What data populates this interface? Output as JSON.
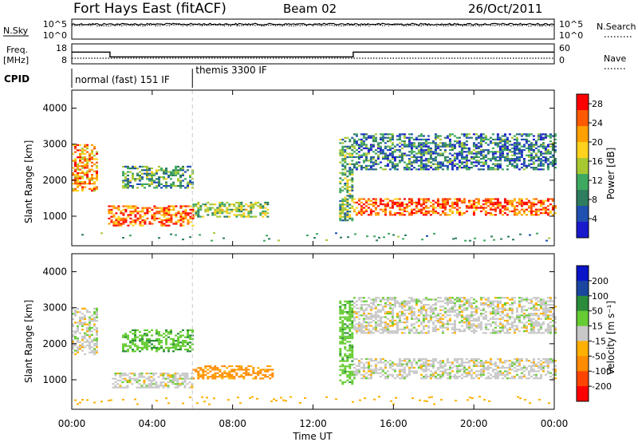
{
  "header": {
    "station": "Fort Hays East (fitACF)",
    "beam": "Beam 02",
    "date": "26/Oct/2011"
  },
  "panel_labels": {
    "nsky": "N.Sky",
    "nsearch": "N.Search",
    "freq_line1": "Freq.",
    "freq_line2": "[MHz]",
    "nave": "Nave",
    "cpid": "CPID"
  },
  "cpid_segments": [
    {
      "label": "normal (fast) 151 IF",
      "start_hour": 0,
      "end_hour": 6
    },
    {
      "label": "themis 3300 IF",
      "start_hour": 6,
      "end_hour": 24
    }
  ],
  "colors": {
    "power": [
      "#1a1acc",
      "#2050b0",
      "#2e7d5e",
      "#3fa860",
      "#a8c832",
      "#ffd21e",
      "#ffa000",
      "#ff5a00",
      "#ff0000"
    ],
    "velocity": [
      "#ff0000",
      "#ff4400",
      "#ff8c00",
      "#ffb000",
      "#c8c8c8",
      "#66cc33",
      "#2a8c3a",
      "#1a46a0",
      "#0a14c8"
    ]
  },
  "chart_data": [
    {
      "type": "line",
      "title": "N.Sky / N.Search",
      "y_left_ticks": [
        "10^5",
        "10^0"
      ],
      "y_right_ticks": [
        "10^5",
        "10^0"
      ],
      "y_scale": "log",
      "series": [
        {
          "name": "N.Sky",
          "style": "solid",
          "x_hours": [
            0,
            24
          ],
          "y": [
            20000,
            20000
          ]
        },
        {
          "name": "N.Search",
          "style": "dotted",
          "x_hours": [
            0,
            24
          ],
          "y": [
            20000,
            20000
          ]
        }
      ]
    },
    {
      "type": "line",
      "title": "Freq. [MHz] / Nave",
      "y_left_ticks": [
        "18",
        "8"
      ],
      "y_right_ticks": [
        "60",
        "0"
      ],
      "series": [
        {
          "name": "Freq.",
          "style": "solid",
          "x_hours": [
            0,
            1.9,
            1.9,
            14.0,
            14.0,
            24
          ],
          "y": [
            14.5,
            14.5,
            10.5,
            10.5,
            14.5,
            14.5
          ]
        },
        {
          "name": "Nave",
          "style": "dotted",
          "x_hours": [
            0,
            24
          ],
          "y": [
            10,
            10
          ]
        }
      ]
    },
    {
      "type": "heatmap",
      "quantity": "Power",
      "ylabel": "Slant Range [km]",
      "colorbar_label": "Power [dB]",
      "colorbar_ticks": [
        "4",
        "8",
        "12",
        "16",
        "20",
        "24",
        "28"
      ],
      "colorbar_range": [
        0,
        30
      ],
      "y_ticks": [
        "1000",
        "2000",
        "3000",
        "4000"
      ],
      "y_range_km": [
        180,
        4500
      ],
      "x_range_hours": [
        0,
        24
      ],
      "grid": false,
      "echo_regions": [
        {
          "x_hours": [
            0.0,
            1.2
          ],
          "range_km": [
            1700,
            3000
          ],
          "value": 22
        },
        {
          "x_hours": [
            1.8,
            6.0
          ],
          "range_km": [
            750,
            1300
          ],
          "value": 24
        },
        {
          "x_hours": [
            6.0,
            9.8
          ],
          "range_km": [
            1000,
            1400
          ],
          "value": 14
        },
        {
          "x_hours": [
            2.5,
            6.0
          ],
          "range_km": [
            1800,
            2400
          ],
          "value": 10
        },
        {
          "x_hours": [
            13.3,
            14.0
          ],
          "range_km": [
            900,
            3200
          ],
          "value": 12
        },
        {
          "x_hours": [
            14.0,
            24.0
          ],
          "range_km": [
            1050,
            1500
          ],
          "value": 25
        },
        {
          "x_hours": [
            14.0,
            24.0
          ],
          "range_km": [
            2300,
            3300
          ],
          "value": 8
        }
      ]
    },
    {
      "type": "heatmap",
      "quantity": "Velocity",
      "ylabel": "Slant Range [km]",
      "xlabel": "Time UT",
      "colorbar_label": "Velocity [m s⁻¹]",
      "colorbar_ticks": [
        "200",
        "100",
        "50",
        "15",
        "-15",
        "-50",
        "-100",
        "-200"
      ],
      "colorbar_range": [
        -250,
        250
      ],
      "y_ticks": [
        "1000",
        "2000",
        "3000",
        "4000"
      ],
      "x_ticks": [
        "00:00",
        "04:00",
        "08:00",
        "12:00",
        "16:00",
        "20:00",
        "00:00"
      ],
      "y_range_km": [
        180,
        4500
      ],
      "x_range_hours": [
        0,
        24
      ],
      "grid": false,
      "echo_regions": [
        {
          "x_hours": [
            0.0,
            1.2
          ],
          "range_km": [
            1700,
            3000
          ],
          "value": 0
        },
        {
          "x_hours": [
            2.0,
            6.0
          ],
          "range_km": [
            800,
            1200
          ],
          "value": 0
        },
        {
          "x_hours": [
            6.0,
            10.0
          ],
          "range_km": [
            1050,
            1400
          ],
          "value": -60
        },
        {
          "x_hours": [
            2.5,
            6.0
          ],
          "range_km": [
            1800,
            2400
          ],
          "value": 40
        },
        {
          "x_hours": [
            13.3,
            14.0
          ],
          "range_km": [
            900,
            3200
          ],
          "value": 35
        },
        {
          "x_hours": [
            14.0,
            24.0
          ],
          "range_km": [
            1050,
            1600
          ],
          "value": 0
        },
        {
          "x_hours": [
            14.0,
            24.0
          ],
          "range_km": [
            2300,
            3300
          ],
          "value": 0
        }
      ]
    }
  ]
}
